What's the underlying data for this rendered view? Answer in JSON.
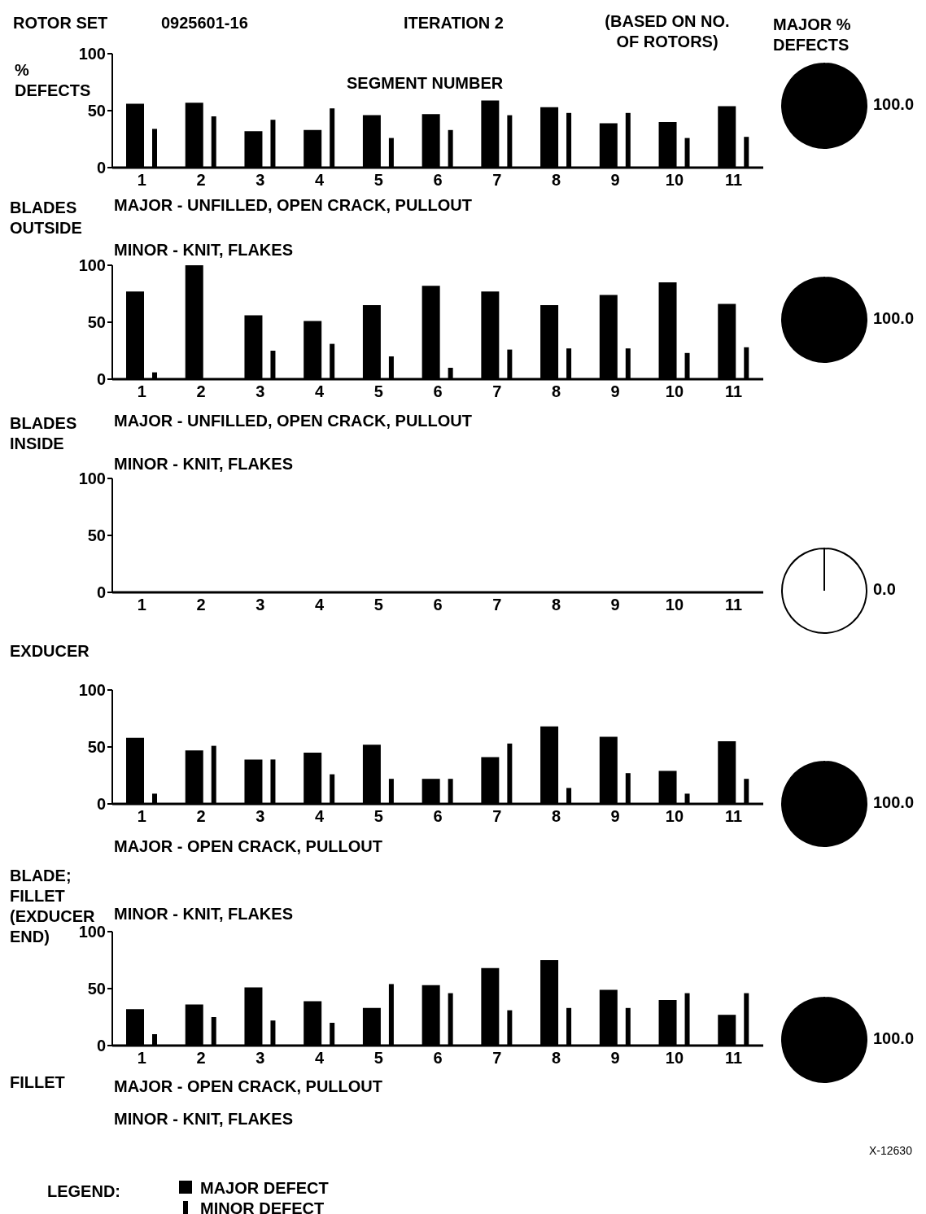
{
  "chart_data": [
    {
      "type": "bar",
      "title": "BLADES OUTSIDE",
      "ylabel": "% DEFECTS",
      "xlabel": "SEGMENT NUMBER",
      "categories": [
        "1",
        "2",
        "3",
        "4",
        "5",
        "6",
        "7",
        "8",
        "9",
        "10",
        "11"
      ],
      "series": [
        {
          "color": "#000000",
          "values": [
            56,
            57,
            32,
            33,
            46,
            47,
            59,
            53,
            39,
            40,
            54
          ]
        },
        {
          "color": "#000000",
          "values": [
            34,
            45,
            42,
            52,
            26,
            33,
            46,
            48,
            48,
            26,
            27
          ]
        }
      ],
      "ylim": [
        0,
        100
      ],
      "yticks": [
        0,
        50,
        100
      ],
      "legend": false,
      "annotations": [
        "ROTOR SET",
        "0925601-16",
        "ITERATION 2",
        "(BASED ON NO. OF ROTORS)",
        "MAJOR - UNFILLED, OPEN CRACK, PULLOUT",
        "MINOR - KNIT, FLAKES"
      ]
    },
    {
      "type": "pie",
      "title": "MAJOR % DEFECTS",
      "categories": [
        null,
        null
      ],
      "values": [
        100,
        0
      ],
      "colors": [
        "#000000",
        "#ffffff"
      ],
      "value_labels": [
        "100.0",
        null
      ]
    },
    {
      "type": "bar",
      "title": "BLADES INSIDE",
      "categories": [
        "1",
        "2",
        "3",
        "4",
        "5",
        "6",
        "7",
        "8",
        "9",
        "10",
        "11"
      ],
      "series": [
        {
          "color": "#000000",
          "values": [
            77,
            100,
            56,
            51,
            65,
            82,
            77,
            65,
            74,
            85,
            66
          ]
        },
        {
          "color": "#000000",
          "values": [
            6,
            0,
            25,
            31,
            20,
            10,
            26,
            27,
            27,
            23,
            28
          ]
        }
      ],
      "ylim": [
        0,
        100
      ],
      "yticks": [
        0,
        50,
        100
      ],
      "legend": false,
      "annotations": [
        "MAJOR - UNFILLED, OPEN CRACK, PULLOUT",
        "MINOR - KNIT, FLAKES"
      ]
    },
    {
      "type": "pie",
      "categories": [
        null,
        null
      ],
      "values": [
        100,
        0
      ],
      "colors": [
        "#000000",
        "#ffffff"
      ],
      "value_labels": [
        "100.0",
        null
      ]
    },
    {
      "type": "bar",
      "title": "EXDUCER",
      "categories": [
        "1",
        "2",
        "3",
        "4",
        "5",
        "6",
        "7",
        "8",
        "9",
        "10",
        "11"
      ],
      "series": [
        {
          "color": "#000000",
          "values": [
            0,
            0,
            0,
            0,
            0,
            0,
            0,
            0,
            0,
            0,
            0
          ]
        },
        {
          "color": "#000000",
          "values": [
            0,
            0,
            0,
            0,
            0,
            0,
            0,
            0,
            0,
            0,
            0
          ]
        }
      ],
      "ylim": [
        0,
        100
      ],
      "yticks": [
        0,
        50,
        100
      ],
      "legend": false
    },
    {
      "type": "pie",
      "categories": [
        null,
        null
      ],
      "values": [
        0,
        100
      ],
      "colors": [
        "#000000",
        "#ffffff"
      ],
      "value_labels": [
        "0.0",
        null
      ]
    },
    {
      "type": "bar",
      "title": "BLADE; FILLET (EXDUCER END)",
      "categories": [
        "1",
        "2",
        "3",
        "4",
        "5",
        "6",
        "7",
        "8",
        "9",
        "10",
        "11"
      ],
      "series": [
        {
          "color": "#000000",
          "values": [
            58,
            47,
            39,
            45,
            52,
            22,
            41,
            68,
            59,
            29,
            55
          ]
        },
        {
          "color": "#000000",
          "values": [
            9,
            51,
            39,
            26,
            22,
            22,
            53,
            14,
            27,
            9,
            22
          ]
        }
      ],
      "ylim": [
        0,
        100
      ],
      "yticks": [
        0,
        50,
        100
      ],
      "legend": false,
      "annotations": [
        "MAJOR - OPEN CRACK, PULLOUT",
        "MINOR - KNIT, FLAKES"
      ]
    },
    {
      "type": "pie",
      "categories": [
        null,
        null
      ],
      "values": [
        100,
        0
      ],
      "colors": [
        "#000000",
        "#ffffff"
      ],
      "value_labels": [
        "100.0",
        null
      ]
    },
    {
      "type": "bar",
      "title": "FILLET",
      "categories": [
        "1",
        "2",
        "3",
        "4",
        "5",
        "6",
        "7",
        "8",
        "9",
        "10",
        "11"
      ],
      "series": [
        {
          "name": "MAJOR DEFECT",
          "color": "#000000",
          "values": [
            32,
            36,
            51,
            39,
            33,
            53,
            68,
            75,
            49,
            40,
            27
          ]
        },
        {
          "name": "MINOR DEFECT",
          "color": "#000000",
          "values": [
            10,
            25,
            22,
            20,
            54,
            46,
            31,
            33,
            33,
            46,
            46
          ]
        }
      ],
      "ylim": [
        0,
        100
      ],
      "yticks": [
        0,
        50,
        100
      ],
      "legend": "bottom left",
      "legend_title": "LEGEND:",
      "annotations": [
        "MAJOR - OPEN CRACK, PULLOUT",
        "MINOR - KNIT, FLAKES",
        "X-12630"
      ]
    },
    {
      "type": "pie",
      "categories": [
        null,
        null
      ],
      "values": [
        100,
        0
      ],
      "colors": [
        "#000000",
        "#ffffff"
      ],
      "value_labels": [
        "100.0",
        null
      ]
    }
  ]
}
